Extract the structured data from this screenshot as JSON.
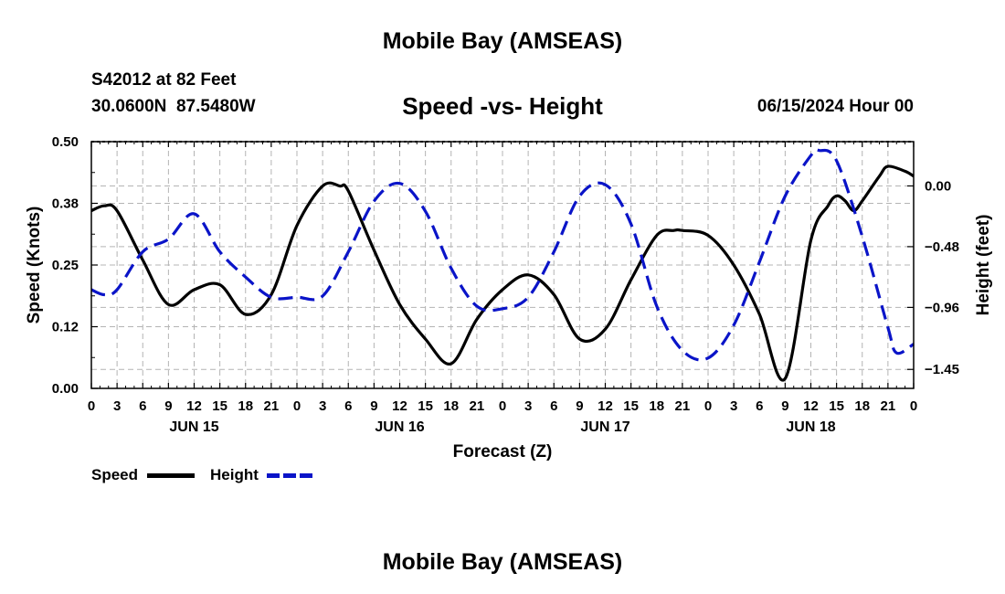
{
  "page": {
    "title": "Mobile Bay (AMSEAS)",
    "station": "S42012 at 82 Feet",
    "coords": "30.0600N  87.5480W",
    "subtitle": "Speed -vs- Height",
    "timestamp": "06/15/2024 Hour 00",
    "footer_title": "Mobile Bay (AMSEAS)"
  },
  "legend": {
    "speed_label": "Speed",
    "height_label": "Height"
  },
  "colors": {
    "speed": "#000000",
    "height": "#0a14c8",
    "grid": "#b4b4b4"
  },
  "chart_data": {
    "type": "line",
    "xlabel": "Forecast (Z)",
    "ylabel": "Speed (Knots)",
    "y2label": "Height (feet)",
    "x_range_hours": [
      0,
      96
    ],
    "ylim": [
      0,
      0.5
    ],
    "y2lim": [
      -1.6,
      0.35
    ],
    "y_ticks": [
      {
        "value": 0.0,
        "label": "0.00"
      },
      {
        "value": 0.125,
        "label": "0.12"
      },
      {
        "value": 0.25,
        "label": "0.25"
      },
      {
        "value": 0.375,
        "label": "0.38"
      },
      {
        "value": 0.5,
        "label": "0.50"
      }
    ],
    "y2_ticks": [
      {
        "value": 0.0,
        "label": "0.00"
      },
      {
        "value": -0.48,
        "label": "−0.48"
      },
      {
        "value": -0.96,
        "label": "−0.96"
      },
      {
        "value": -1.45,
        "label": "−1.45"
      }
    ],
    "x_ticks": [
      "0",
      "3",
      "6",
      "9",
      "12",
      "15",
      "18",
      "21",
      "0",
      "3",
      "6",
      "9",
      "12",
      "15",
      "18",
      "21",
      "0",
      "3",
      "6",
      "9",
      "12",
      "15",
      "18",
      "21",
      "0",
      "3",
      "6",
      "9",
      "12",
      "15",
      "18",
      "21",
      "0"
    ],
    "day_labels": [
      {
        "hour": 12,
        "label": "JUN 15"
      },
      {
        "hour": 36,
        "label": "JUN 16"
      },
      {
        "hour": 60,
        "label": "JUN 17"
      },
      {
        "hour": 84,
        "label": "JUN 18"
      }
    ],
    "series": [
      {
        "name": "Speed",
        "axis": "left",
        "style": "solid",
        "x": [
          0,
          1.5,
          3,
          6,
          9,
          12,
          15,
          18,
          21,
          24,
          27,
          29,
          30,
          33,
          36,
          39,
          42,
          45,
          48,
          51,
          54,
          57,
          60,
          63,
          66,
          68,
          69,
          72,
          75,
          78,
          81,
          84,
          86,
          87,
          88,
          89,
          90,
          92,
          93,
          95,
          96
        ],
        "values": [
          0.36,
          0.37,
          0.36,
          0.26,
          0.17,
          0.2,
          0.21,
          0.15,
          0.19,
          0.33,
          0.41,
          0.41,
          0.4,
          0.28,
          0.17,
          0.1,
          0.05,
          0.14,
          0.2,
          0.23,
          0.19,
          0.1,
          0.12,
          0.22,
          0.31,
          0.32,
          0.32,
          0.31,
          0.25,
          0.15,
          0.02,
          0.3,
          0.37,
          0.39,
          0.38,
          0.36,
          0.38,
          0.43,
          0.45,
          0.44,
          0.43
        ]
      },
      {
        "name": "Height",
        "axis": "right",
        "style": "dashed",
        "x": [
          0,
          1.5,
          3,
          6,
          9,
          12,
          15,
          18,
          21,
          24,
          27,
          30,
          33,
          36,
          39,
          42,
          45,
          48,
          51,
          54,
          57,
          60,
          63,
          66,
          69,
          72,
          75,
          78,
          81,
          84,
          85,
          87,
          90,
          93,
          94,
          96
        ],
        "values": [
          -0.82,
          -0.86,
          -0.82,
          -0.52,
          -0.42,
          -0.22,
          -0.52,
          -0.72,
          -0.88,
          -0.88,
          -0.87,
          -0.52,
          -0.12,
          0.02,
          -0.2,
          -0.65,
          -0.95,
          -0.97,
          -0.88,
          -0.52,
          -0.08,
          0.01,
          -0.3,
          -0.95,
          -1.3,
          -1.36,
          -1.1,
          -0.6,
          -0.08,
          0.24,
          0.28,
          0.2,
          -0.4,
          -1.12,
          -1.32,
          -1.25
        ]
      }
    ]
  }
}
